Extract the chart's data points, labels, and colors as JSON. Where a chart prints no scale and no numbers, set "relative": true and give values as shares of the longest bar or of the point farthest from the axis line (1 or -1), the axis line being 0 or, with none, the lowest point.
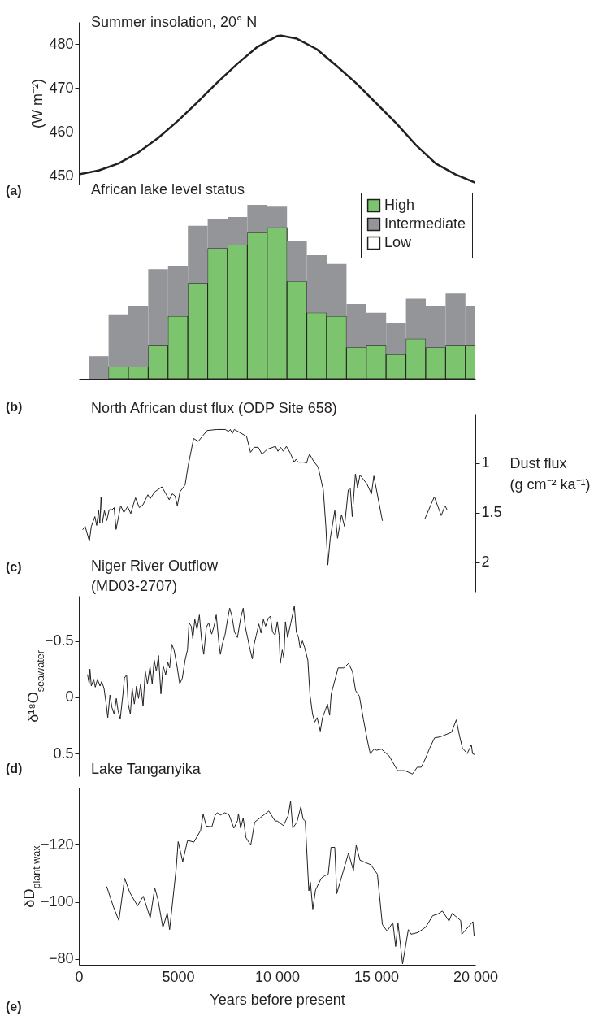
{
  "chart_data": [
    {
      "type": "line",
      "title": "Summer insolation, 20° N",
      "ylabel": "(W m⁻²)",
      "annotations": [
        "(a)"
      ],
      "x": [
        0,
        1000,
        2000,
        3000,
        4000,
        5000,
        6000,
        7000,
        8000,
        9000,
        10000,
        10200,
        11000,
        12000,
        13000,
        14000,
        15000,
        16000,
        17000,
        18000,
        19000,
        20000
      ],
      "series": [
        {
          "color": "#231f20",
          "values": [
            450.3,
            451.2,
            452.8,
            455.3,
            458.6,
            462.5,
            466.8,
            471.3,
            475.5,
            479.3,
            481.8,
            481.9,
            481.2,
            478.8,
            475,
            471,
            466.5,
            462,
            457,
            452.8,
            450.3,
            448.4
          ]
        }
      ],
      "xlim": [
        0,
        20000
      ],
      "ylim": [
        448,
        485
      ],
      "yticks": [
        450,
        460,
        470,
        480
      ],
      "tick_labels": "y"
    },
    {
      "type": "bar",
      "title": "African lake level status",
      "annotations": [
        "(b)"
      ],
      "stacked": true,
      "relative": true,
      "legend": "top right",
      "tick_labels": false,
      "xlim": [
        0,
        20000
      ],
      "x": [
        1000,
        2000,
        3000,
        4000,
        5000,
        6000,
        7000,
        8000,
        9000,
        10000,
        11000,
        12000,
        13000,
        14000,
        15000,
        16000,
        17000,
        18000,
        19000,
        20000
      ],
      "series": [
        {
          "name": "High",
          "color": "#7dc46e",
          "values": [
            0,
            0.07,
            0.07,
            0.19,
            0.36,
            0.55,
            0.75,
            0.77,
            0.84,
            0.87,
            0.56,
            0.38,
            0.36,
            0.18,
            0.19,
            0.14,
            0.23,
            0.18,
            0.19,
            0.19
          ]
        },
        {
          "name": "Intermediate",
          "color": "#939598",
          "values": [
            0.13,
            0.3,
            0.35,
            0.44,
            0.29,
            0.33,
            0.17,
            0.16,
            0.16,
            0.12,
            0.23,
            0.33,
            0.3,
            0.25,
            0.19,
            0.18,
            0.23,
            0.24,
            0.3,
            0.23
          ]
        },
        {
          "name": "Low",
          "color": "#ffffff",
          "values": [
            null,
            null,
            null,
            null,
            null,
            null,
            null,
            null,
            null,
            null,
            null,
            null,
            null,
            null,
            null,
            null,
            null,
            null,
            null,
            null
          ]
        }
      ]
    },
    {
      "type": "line",
      "title": "North African dust flux (ODP Site 658)",
      "y2label": "Dust flux\n(g cm⁻² ka⁻¹)",
      "annotations": [
        "(c)"
      ],
      "tick_labels": "y",
      "xlim": [
        0,
        20000
      ],
      "y2lim": [
        2.3,
        0.5
      ],
      "y2ticks": [
        1,
        1.5,
        2
      ],
      "series": [
        {
          "color": "#231f20",
          "axis": "y2",
          "x": [
            200,
            320,
            530,
            630,
            810,
            900,
            1000,
            1060,
            1120,
            1190,
            1290,
            1410,
            1530,
            1680,
            1780,
            1880,
            2110,
            2270,
            2460,
            2620,
            2750,
            2860,
            3050,
            3240,
            3480,
            3600,
            3830,
            4190,
            4560,
            4710,
            4850,
            4970,
            5100,
            5360,
            5510,
            5790,
            6020,
            6470,
            6960,
            7390,
            7540,
            7640,
            7740,
            7840,
            8030,
            8460,
            8660,
            8850,
            9050,
            9240,
            9500,
            9920,
            10040,
            10180,
            10310,
            10470,
            10670,
            10860,
            10960,
            11060,
            11350,
            11490,
            11570,
            11640,
            11840,
            12070,
            12330,
            12460,
            12560,
            12680,
            12910,
            13050,
            13250,
            13400,
            13590,
            13690,
            13790,
            13950,
            14060,
            14180,
            14530,
            14760,
            14880,
            15310,
            16400,
            17460,
            17930,
            18280,
            18470,
            18570
          ],
          "values": [
            1.67,
            1.64,
            1.79,
            1.64,
            1.54,
            1.63,
            1.48,
            1.61,
            1.34,
            1.6,
            1.48,
            1.58,
            1.47,
            1.47,
            1.45,
            1.67,
            1.43,
            1.5,
            1.44,
            1.51,
            1.42,
            1.35,
            1.45,
            1.42,
            1.32,
            1.36,
            1.29,
            1.24,
            1.37,
            1.31,
            1.33,
            1.43,
            1.29,
            1.22,
            1.03,
            0.75,
            0.78,
            0.67,
            0.66,
            0.66,
            0.68,
            0.66,
            0.7,
            0.66,
            0.68,
            0.73,
            0.89,
            0.84,
            0.84,
            0.91,
            0.86,
            0.83,
            0.88,
            0.84,
            0.88,
            0.83,
            0.9,
            0.99,
            0.96,
            0.99,
            0.99,
            1.0,
            0.94,
            0.91,
            0.98,
            1.04,
            1.27,
            1.64,
            2.03,
            1.76,
            1.48,
            1.76,
            1.52,
            1.64,
            1.27,
            1.25,
            1.54,
            1.11,
            1.25,
            1.12,
            1.21,
            1.31,
            1.13,
            1.58,
            null,
            1.56,
            1.34,
            1.53,
            1.43,
            1.47
          ]
        }
      ]
    },
    {
      "type": "line",
      "title": "Niger River Outflow\n(MD03-2707)",
      "ylabel": "δ¹⁸O$_{seawater}$",
      "annotations": [
        "(d)"
      ],
      "tick_labels": "y",
      "xlim": [
        0,
        20000
      ],
      "ylim": [
        0.7,
        -0.9
      ],
      "yticks": [
        {
          "value": -0.5,
          "label": "−0.5"
        },
        0,
        0.5
      ],
      "series": [
        {
          "color": "#231f20",
          "x": [
            440,
            520,
            560,
            630,
            750,
            830,
            940,
            1070,
            1150,
            1270,
            1380,
            1460,
            1570,
            1670,
            1780,
            1890,
            1980,
            2090,
            2220,
            2300,
            2410,
            2490,
            2600,
            2690,
            2800,
            2910,
            3010,
            3120,
            3240,
            3350,
            3460,
            3590,
            3700,
            3800,
            3910,
            4020,
            4140,
            4250,
            4380,
            4490,
            4580,
            4690,
            4800,
            4930,
            5090,
            5220,
            5360,
            5480,
            5560,
            5670,
            5750,
            5850,
            5960,
            6080,
            6190,
            6300,
            6430,
            6550,
            6700,
            6820,
            6930,
            7060,
            7140,
            7250,
            7370,
            7500,
            7610,
            7720,
            7850,
            8000,
            8160,
            8290,
            8400,
            8510,
            8640,
            8750,
            8840,
            8950,
            9080,
            9190,
            9310,
            9420,
            9550,
            9660,
            9770,
            9900,
            10010,
            10100,
            10160,
            10260,
            10340,
            10420,
            10530,
            10680,
            10790,
            10870,
            10970,
            11080,
            11160,
            11280,
            11390,
            11550,
            11660,
            11790,
            11900,
            12020,
            12180,
            12290,
            12420,
            12540,
            12650,
            12730,
            13080,
            13360,
            13600,
            13800,
            13960,
            14150,
            14360,
            14550,
            14700,
            14890,
            15020,
            15260,
            15650,
            16080,
            16440,
            16830,
            17070,
            17270,
            17490,
            17700,
            17940,
            18250,
            18800,
            19040,
            19200,
            19350,
            19590,
            19800,
            19860,
            20000
          ],
          "values": [
            -0.2,
            -0.12,
            -0.25,
            -0.1,
            -0.16,
            -0.09,
            -0.16,
            -0.1,
            -0.14,
            -0.08,
            0.06,
            0.18,
            -0.02,
            0.09,
            0.15,
            0.01,
            0.12,
            0.19,
            -0.02,
            -0.17,
            -0.2,
            0.06,
            0.15,
            -0.08,
            0.06,
            -0.1,
            0.01,
            -0.12,
            0.08,
            -0.23,
            -0.12,
            -0.27,
            -0.12,
            -0.33,
            -0.23,
            -0.37,
            -0.03,
            -0.28,
            -0.2,
            -0.31,
            -0.26,
            -0.47,
            -0.42,
            -0.3,
            -0.12,
            -0.17,
            -0.33,
            -0.42,
            -0.66,
            -0.63,
            -0.52,
            -0.69,
            -0.6,
            -0.73,
            -0.51,
            -0.38,
            -0.62,
            -0.66,
            -0.56,
            -0.63,
            -0.73,
            -0.49,
            -0.38,
            -0.48,
            -0.55,
            -0.69,
            -0.79,
            -0.72,
            -0.58,
            -0.53,
            -0.7,
            -0.79,
            -0.62,
            -0.53,
            -0.42,
            -0.34,
            -0.47,
            -0.55,
            -0.65,
            -0.57,
            -0.69,
            -0.63,
            -0.7,
            -0.72,
            -0.58,
            -0.55,
            -0.67,
            -0.55,
            -0.3,
            -0.42,
            -0.35,
            -0.67,
            -0.53,
            -0.65,
            -0.74,
            -0.81,
            -0.58,
            -0.53,
            -0.44,
            -0.5,
            -0.44,
            -0.33,
            -0.02,
            0.15,
            0.22,
            0.18,
            0.3,
            0.18,
            0.12,
            0.06,
            0.16,
            -0.03,
            -0.26,
            -0.26,
            -0.3,
            -0.23,
            -0.06,
            -0.01,
            0.2,
            0.38,
            0.5,
            0.46,
            0.47,
            0.46,
            0.52,
            0.65,
            0.65,
            0.68,
            0.62,
            0.62,
            0.54,
            0.45,
            0.36,
            0.35,
            0.31,
            0.2,
            0.34,
            0.45,
            0.5,
            0.42,
            0.5,
            0.51
          ]
        }
      ]
    },
    {
      "type": "line",
      "title": "Lake Tanganyika",
      "ylabel": "δD$_{plant wax}$",
      "xlabel": "Years before present",
      "annotations": [
        "(e)"
      ],
      "xlim": [
        0,
        20000
      ],
      "xticks": [
        0,
        5000,
        {
          "value": 10000,
          "label": "10 000"
        },
        {
          "value": 15000,
          "label": "15 000"
        },
        {
          "value": 20000,
          "label": "20 000"
        }
      ],
      "ylim": [
        -78,
        -140
      ],
      "yticks": [
        {
          "value": -120,
          "label": "−120"
        },
        {
          "value": -100,
          "label": "−100"
        },
        {
          "value": -80,
          "label": "−80"
        }
      ],
      "series": [
        {
          "color": "#231f20",
          "x": [
            1410,
            1750,
            2020,
            2310,
            2570,
            2960,
            3250,
            3600,
            3830,
            3990,
            4240,
            4460,
            4580,
            4910,
            5010,
            5240,
            5480,
            5560,
            5800,
            6140,
            6270,
            6430,
            6710,
            6870,
            6980,
            7140,
            7370,
            7580,
            7820,
            8010,
            8050,
            8160,
            8290,
            8430,
            8670,
            8870,
            9580,
            9900,
            10010,
            10320,
            10560,
            10680,
            10790,
            11000,
            11200,
            11310,
            11420,
            11600,
            11680,
            11800,
            11940,
            12230,
            12390,
            12580,
            12720,
            12910,
            13010,
            13600,
            13850,
            13990,
            14180,
            14730,
            15060,
            15310,
            15550,
            15840,
            15980,
            16100,
            16330,
            16620,
            16760,
            17110,
            17500,
            17850,
            18090,
            18340,
            18670,
            18830,
            19260,
            19320,
            19880,
            19940,
            20000
          ],
          "values": [
            -105.3,
            -98.2,
            -93.5,
            -108.3,
            -103.3,
            -98.6,
            -102.0,
            -94.4,
            -104.9,
            -100.9,
            -91.0,
            -96.1,
            -90.3,
            -111.7,
            -121.1,
            -114.1,
            -121.4,
            -121.4,
            -120.9,
            -125.0,
            -130.7,
            -126.5,
            -126.3,
            -130.2,
            -131.2,
            -130.4,
            -131.2,
            -130.4,
            -125.8,
            -128.5,
            -130.9,
            -125.8,
            -129.4,
            -122.5,
            -119.8,
            -127.9,
            -131.8,
            -128.3,
            -128.3,
            -126.7,
            -130.2,
            -135.2,
            -125.8,
            -127.9,
            -133.3,
            -129.0,
            -128.3,
            -103.9,
            -106.9,
            -97.5,
            -104.2,
            -108.3,
            -109.1,
            -109.7,
            -119.1,
            -119.1,
            -102.9,
            -117.1,
            -111.0,
            -119.8,
            -114.6,
            -113.0,
            -109.7,
            -92.1,
            -89.8,
            -92.8,
            -84.4,
            -92.5,
            -78.3,
            -90.3,
            -88.7,
            -89.3,
            -91.2,
            -95.2,
            -95.7,
            -96.8,
            -93.3,
            -96.0,
            -93.5,
            -88.7,
            -93.1,
            -88.0,
            -89.3
          ]
        }
      ]
    }
  ]
}
